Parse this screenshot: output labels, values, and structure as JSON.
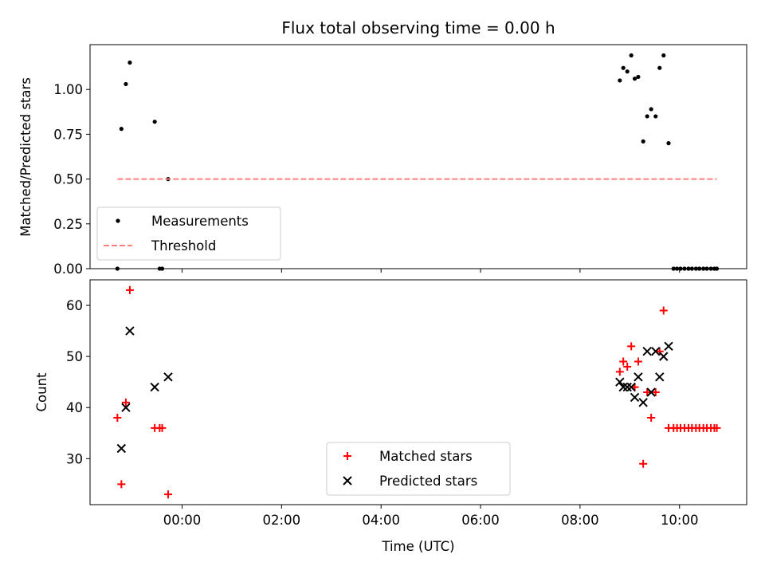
{
  "chart_data": [
    {
      "type": "scatter",
      "title": "Flux total observing time = 0.00 h",
      "xlabel": "",
      "ylabel": "Matched/Predicted stars",
      "xlim_hours": [
        -1.85,
        11.35
      ],
      "ylim": [
        0,
        1.25
      ],
      "yticks": [
        0.0,
        0.25,
        0.5,
        0.75,
        1.0
      ],
      "ytick_labels": [
        "0.00",
        "0.25",
        "0.50",
        "0.75",
        "1.00"
      ],
      "legend": {
        "location": "lower-left",
        "entries": [
          "Measurements",
          "Threshold"
        ]
      },
      "series": [
        {
          "name": "Measurements",
          "marker": "dot",
          "color": "#000000",
          "x": [
            -1.3,
            -1.22,
            -1.13,
            -1.05,
            -0.55,
            -0.45,
            -0.4,
            -0.28,
            8.8,
            8.87,
            8.95,
            9.03,
            9.1,
            9.17,
            9.27,
            9.35,
            9.43,
            9.52,
            9.6,
            9.68,
            9.78,
            9.88,
            9.95,
            10.02,
            10.1,
            10.18,
            10.25,
            10.33,
            10.4,
            10.48,
            10.55,
            10.63,
            10.7,
            10.75
          ],
          "y": [
            0.0,
            0.78,
            1.03,
            1.15,
            0.82,
            0.0,
            0.0,
            0.5,
            1.05,
            1.12,
            1.1,
            1.19,
            1.06,
            1.07,
            0.71,
            0.85,
            0.89,
            0.85,
            1.12,
            1.19,
            0.7,
            0.0,
            0.0,
            0.0,
            0.0,
            0.0,
            0.0,
            0.0,
            0.0,
            0.0,
            0.0,
            0.0,
            0.0,
            0.0
          ]
        },
        {
          "name": "Threshold",
          "marker": "dashed-line",
          "color": "#ff7f7f",
          "x": [
            -1.3,
            10.75
          ],
          "y": [
            0.5,
            0.5
          ]
        }
      ]
    },
    {
      "type": "scatter",
      "title": "",
      "xlabel": "Time (UTC)",
      "ylabel": "Count",
      "xlim_hours": [
        -1.85,
        11.35
      ],
      "ylim": [
        21,
        65
      ],
      "yticks": [
        30,
        40,
        50,
        60
      ],
      "ytick_labels": [
        "30",
        "40",
        "50",
        "60"
      ],
      "xticks_hours": [
        0,
        2,
        4,
        6,
        8,
        10
      ],
      "xtick_labels": [
        "00:00",
        "02:00",
        "04:00",
        "06:00",
        "08:00",
        "10:00"
      ],
      "legend": {
        "location": "lower-center",
        "entries": [
          "Matched stars",
          "Predicted stars"
        ]
      },
      "series": [
        {
          "name": "Matched stars",
          "marker": "plus",
          "color": "#ff0000",
          "x": [
            -1.3,
            -1.22,
            -1.13,
            -1.05,
            -0.55,
            -0.45,
            -0.4,
            -0.28,
            8.8,
            8.87,
            8.95,
            9.03,
            9.1,
            9.17,
            9.27,
            9.35,
            9.43,
            9.52,
            9.6,
            9.68,
            9.78,
            9.88,
            9.95,
            10.02,
            10.1,
            10.18,
            10.25,
            10.33,
            10.4,
            10.48,
            10.55,
            10.63,
            10.7,
            10.75
          ],
          "y": [
            38,
            25,
            41,
            63,
            36,
            36,
            36,
            23,
            47,
            49,
            48,
            52,
            44,
            49,
            29,
            43,
            38,
            43,
            51,
            59,
            36,
            36,
            36,
            36,
            36,
            36,
            36,
            36,
            36,
            36,
            36,
            36,
            36,
            36
          ]
        },
        {
          "name": "Predicted stars",
          "marker": "x",
          "color": "#000000",
          "x": [
            -1.22,
            -1.13,
            -1.05,
            -0.55,
            -0.28,
            8.8,
            8.87,
            8.95,
            9.03,
            9.1,
            9.17,
            9.27,
            9.35,
            9.43,
            9.52,
            9.6,
            9.68,
            9.78
          ],
          "y": [
            32,
            40,
            55,
            44,
            46,
            45,
            44,
            44,
            44,
            42,
            46,
            41,
            51,
            43,
            51,
            46,
            50,
            52
          ]
        }
      ]
    }
  ]
}
